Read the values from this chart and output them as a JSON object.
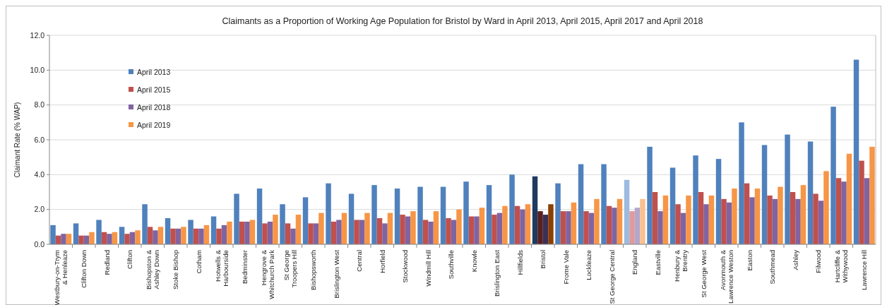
{
  "chart_data": {
    "type": "bar",
    "title": "Claimants as a Proportion of Working Age Population for Bristol by Ward in April 2013, April 2015, April 2017 and April 2018",
    "ylabel": "Claimant Rate (% WAP)",
    "categories": [
      "Westbury-on-Trym & Henleaze",
      "Clifton Down",
      "Redland",
      "Clifton",
      "Bishopston & Ashley Down",
      "Stoke Bishop",
      "Cotham",
      "Hotwells & Harbourside",
      "Bedminster",
      "Hengrove & Whitchurch Park",
      "St George Troopers Hill",
      "Bishopsworth",
      "Brislington West",
      "Central",
      "Horfield",
      "Stockwood",
      "Windmill Hill",
      "Southville",
      "Knowle",
      "Brislington East",
      "Hillfields",
      "Bristol",
      "Frome Vale",
      "Lockleaze",
      "St George Central",
      "England",
      "Eastville",
      "Henbury & Brentry",
      "St George West",
      "Avonmouth & Lawrence Weston",
      "Easton",
      "Southmead",
      "Ashley",
      "Filwood",
      "Hartcliffe & Withywood",
      "Lawrence Hill"
    ],
    "series": [
      {
        "name": "April 2013",
        "color": "#4f81bd",
        "colors": [
          "#4f81bd",
          "#4f81bd",
          "#4f81bd",
          "#4f81bd",
          "#4f81bd",
          "#4f81bd",
          "#4f81bd",
          "#4f81bd",
          "#4f81bd",
          "#4f81bd",
          "#4f81bd",
          "#4f81bd",
          "#4f81bd",
          "#4f81bd",
          "#4f81bd",
          "#4f81bd",
          "#4f81bd",
          "#4f81bd",
          "#4f81bd",
          "#4f81bd",
          "#4f81bd",
          "#1f3a5f",
          "#4f81bd",
          "#4f81bd",
          "#4f81bd",
          "#9dbbe0",
          "#4f81bd",
          "#4f81bd",
          "#4f81bd",
          "#4f81bd",
          "#4f81bd",
          "#4f81bd",
          "#4f81bd",
          "#4f81bd",
          "#4f81bd",
          "#4f81bd"
        ],
        "values": [
          1.1,
          1.2,
          1.4,
          1.0,
          2.3,
          1.5,
          1.4,
          1.6,
          2.9,
          3.2,
          2.3,
          2.7,
          3.5,
          2.9,
          3.4,
          3.2,
          3.3,
          3.3,
          3.6,
          3.4,
          4.0,
          3.9,
          3.5,
          4.6,
          4.6,
          3.7,
          5.6,
          4.4,
          5.1,
          4.9,
          7.0,
          5.7,
          6.3,
          5.9,
          7.9,
          10.6
        ]
      },
      {
        "name": "April 2015",
        "color": "#c0504d",
        "colors": [
          "#c0504d",
          "#c0504d",
          "#c0504d",
          "#c0504d",
          "#c0504d",
          "#c0504d",
          "#c0504d",
          "#c0504d",
          "#c0504d",
          "#c0504d",
          "#c0504d",
          "#c0504d",
          "#c0504d",
          "#c0504d",
          "#c0504d",
          "#c0504d",
          "#c0504d",
          "#c0504d",
          "#c0504d",
          "#c0504d",
          "#c0504d",
          "#5a1f1f",
          "#c0504d",
          "#c0504d",
          "#c0504d",
          "#e09a9a",
          "#c0504d",
          "#c0504d",
          "#c0504d",
          "#c0504d",
          "#c0504d",
          "#c0504d",
          "#c0504d",
          "#c0504d",
          "#c0504d",
          "#c0504d"
        ],
        "values": [
          0.5,
          0.5,
          0.7,
          0.6,
          1.0,
          0.9,
          0.9,
          0.9,
          1.3,
          1.2,
          1.2,
          1.2,
          1.3,
          1.4,
          1.5,
          1.7,
          1.4,
          1.5,
          1.6,
          1.7,
          2.2,
          1.9,
          1.9,
          1.9,
          2.2,
          1.9,
          3.0,
          2.3,
          3.0,
          2.6,
          3.5,
          2.8,
          3.0,
          2.9,
          3.8,
          4.8
        ]
      },
      {
        "name": "April 2018",
        "color": "#8064a2",
        "colors": [
          "#8064a2",
          "#8064a2",
          "#8064a2",
          "#8064a2",
          "#8064a2",
          "#8064a2",
          "#8064a2",
          "#8064a2",
          "#8064a2",
          "#8064a2",
          "#8064a2",
          "#8064a2",
          "#8064a2",
          "#8064a2",
          "#8064a2",
          "#8064a2",
          "#8064a2",
          "#8064a2",
          "#8064a2",
          "#8064a2",
          "#8064a2",
          "#3b2f55",
          "#8064a2",
          "#8064a2",
          "#8064a2",
          "#b4a6cc",
          "#8064a2",
          "#8064a2",
          "#8064a2",
          "#8064a2",
          "#8064a2",
          "#8064a2",
          "#8064a2",
          "#8064a2",
          "#8064a2",
          "#8064a2"
        ],
        "values": [
          0.6,
          0.5,
          0.6,
          0.7,
          0.8,
          0.9,
          0.9,
          1.1,
          1.3,
          1.3,
          0.9,
          1.2,
          1.4,
          1.4,
          1.2,
          1.6,
          1.3,
          1.4,
          1.6,
          1.8,
          2.0,
          1.7,
          1.9,
          1.8,
          2.1,
          2.1,
          1.9,
          1.8,
          2.3,
          2.4,
          2.7,
          2.6,
          2.6,
          2.5,
          3.6,
          3.8
        ]
      },
      {
        "name": "April 2019",
        "color": "#f79646",
        "colors": [
          "#f79646",
          "#f79646",
          "#f79646",
          "#f79646",
          "#f79646",
          "#f79646",
          "#f79646",
          "#f79646",
          "#f79646",
          "#f79646",
          "#f79646",
          "#f79646",
          "#f79646",
          "#f79646",
          "#f79646",
          "#f79646",
          "#f79646",
          "#f79646",
          "#f79646",
          "#f79646",
          "#f79646",
          "#8b4000",
          "#f79646",
          "#f79646",
          "#f79646",
          "#fac090",
          "#f79646",
          "#f79646",
          "#f79646",
          "#f79646",
          "#f79646",
          "#f79646",
          "#f79646",
          "#f79646",
          "#f79646",
          "#f79646"
        ],
        "values": [
          0.6,
          0.7,
          0.7,
          0.8,
          1.0,
          1.0,
          1.1,
          1.3,
          1.4,
          1.7,
          1.7,
          1.8,
          1.8,
          1.8,
          1.8,
          1.9,
          1.9,
          2.0,
          2.1,
          2.2,
          2.3,
          2.3,
          2.4,
          2.6,
          2.6,
          2.6,
          2.8,
          2.8,
          2.8,
          3.2,
          3.2,
          3.3,
          3.4,
          4.2,
          5.2,
          5.6
        ]
      }
    ],
    "ylim": [
      0,
      12
    ],
    "yticks": [
      {
        "value": 0,
        "label": "0.0"
      },
      {
        "value": 2,
        "label": "2.0"
      },
      {
        "value": 4,
        "label": "4.0"
      },
      {
        "value": 6,
        "label": "6.0"
      },
      {
        "value": 8,
        "label": "8.0"
      },
      {
        "value": 10,
        "label": "10.0"
      },
      {
        "value": 12,
        "label": "12.0"
      }
    ],
    "grid": "y",
    "legend": "top left"
  }
}
